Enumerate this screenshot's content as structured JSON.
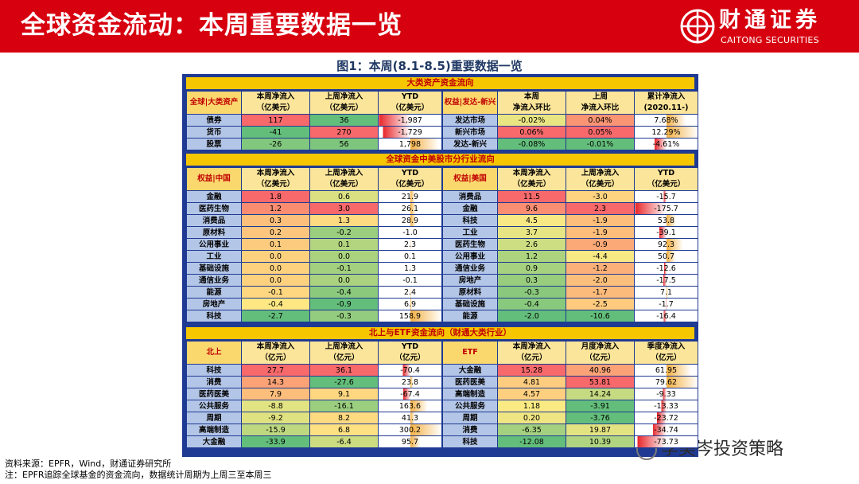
{
  "header": {
    "title": "全球资金流动：本周重要数据一览",
    "brand_cn": "财通证券",
    "brand_en": "CAITONG SECURITIES",
    "brand_color": "#d7000f"
  },
  "figure_title": "图1：本周(8.1-8.5)重要数据一览",
  "sections": [
    {
      "title": "大类资产资金流向",
      "left": {
        "headers": [
          "全球|大类资产",
          "本周净流入\n（亿美元）",
          "上周净流入\n（亿美元）",
          "YTD\n（亿美元）"
        ],
        "rows": [
          [
            "债券",
            "117",
            "36",
            "-1,987"
          ],
          [
            "货币",
            "-41",
            "270",
            "-1,729"
          ],
          [
            "股票",
            "-26",
            "56",
            "1,798"
          ]
        ]
      },
      "right": {
        "headers": [
          "权益|发达-新兴",
          "本周\n净流入环比",
          "上周\n净流入环比",
          "累计净流入\n(2020.11-)"
        ],
        "rows": [
          [
            "发达市场",
            "-0.02%",
            "0.04%",
            "7.68%"
          ],
          [
            "新兴市场",
            "0.06%",
            "0.05%",
            "12.29%"
          ],
          [
            "发达-新兴",
            "-0.08%",
            "-0.01%",
            "-4.61%"
          ]
        ]
      }
    },
    {
      "title": "全球资金中美股市分行业流向",
      "left": {
        "headers": [
          "权益|中国",
          "本周净流入\n（亿美元）",
          "上周净流入\n（亿美元）",
          "YTD\n（亿美元）"
        ],
        "rows": [
          [
            "金融",
            "1.8",
            "0.6",
            "21.9"
          ],
          [
            "医药生物",
            "1.2",
            "3.0",
            "26.1"
          ],
          [
            "消费品",
            "0.3",
            "1.3",
            "28.9"
          ],
          [
            "原材料",
            "0.2",
            "-0.2",
            "-1.0"
          ],
          [
            "公用事业",
            "0.1",
            "0.1",
            "2.3"
          ],
          [
            "工业",
            "0.0",
            "0.0",
            "0.1"
          ],
          [
            "基础设施",
            "0.0",
            "-0.1",
            "1.3"
          ],
          [
            "通信业务",
            "0.0",
            "0.0",
            "-0.1"
          ],
          [
            "能源",
            "-0.1",
            "-0.4",
            "2.4"
          ],
          [
            "房地产",
            "-0.4",
            "-0.9",
            "6.9"
          ],
          [
            "科技",
            "-2.7",
            "-0.3",
            "158.9"
          ]
        ]
      },
      "right": {
        "headers": [
          "权益|美国",
          "本周净流入\n（亿美元）",
          "上周净流入\n（亿美元）",
          "YTD\n（亿美元）"
        ],
        "rows": [
          [
            "消费品",
            "11.5",
            "-3.0",
            "-15.7"
          ],
          [
            "金融",
            "9.6",
            "2.3",
            "-175.7"
          ],
          [
            "科技",
            "4.5",
            "-1.9",
            "53.8"
          ],
          [
            "工业",
            "3.7",
            "-1.9",
            "-39.1"
          ],
          [
            "医药生物",
            "2.6",
            "-0.9",
            "92.3"
          ],
          [
            "公用事业",
            "1.2",
            "-4.4",
            "50.7"
          ],
          [
            "通信业务",
            "0.9",
            "-1.2",
            "-12.6"
          ],
          [
            "房地产",
            "0.3",
            "-2.0",
            "-17.5"
          ],
          [
            "原材料",
            "-0.3",
            "-1.7",
            "7.1"
          ],
          [
            "基础设施",
            "-0.4",
            "-2.5",
            "-1.7"
          ],
          [
            "能源",
            "-2.0",
            "-10.6",
            "-16.4"
          ]
        ]
      }
    },
    {
      "title": "北上与ETF资金流向（财通大类行业）",
      "left": {
        "headers": [
          "北上",
          "本周净流入\n（亿元）",
          "上周净流入\n（亿元）",
          "YTD\n（亿元）"
        ],
        "rows": [
          [
            "科技",
            "27.7",
            "36.1",
            "-70.4"
          ],
          [
            "消费",
            "14.3",
            "-27.6",
            "23.8"
          ],
          [
            "医药医美",
            "7.9",
            "9.1",
            "-67.4"
          ],
          [
            "公共服务",
            "-8.8",
            "-16.1",
            "163.6"
          ],
          [
            "周期",
            "-9.2",
            "8.2",
            "41.3"
          ],
          [
            "高端制造",
            "-15.9",
            "6.8",
            "300.2"
          ],
          [
            "大金融",
            "-33.9",
            "-6.4",
            "95.7"
          ]
        ]
      },
      "right": {
        "headers": [
          "ETF",
          "本周净流入\n（亿元）",
          "月度净流入\n（亿元）",
          "季度净流入\n（亿元）"
        ],
        "rows": [
          [
            "大金融",
            "15.28",
            "40.96",
            "61.95"
          ],
          [
            "医药医美",
            "4.81",
            "53.81",
            "79.62"
          ],
          [
            "高端制造",
            "4.57",
            "14.24",
            "-9.33"
          ],
          [
            "公共服务",
            "1.18",
            "-3.91",
            "-13.33"
          ],
          [
            "周期",
            "0.20",
            "-3.76",
            "-23.72"
          ],
          [
            "消费",
            "-6.35",
            "19.87",
            "-34.74"
          ],
          [
            "科技",
            "-12.08",
            "10.39",
            "-73.73"
          ]
        ]
      }
    }
  ],
  "source": [
    "资料来源：EPFR，Wind，财通证券研究所",
    "注：EPFR追踪全球基金的资金流向，数据统计周期为上周三至本周三"
  ],
  "watermark": "李美岑投资策略",
  "colors": {
    "positive": "#f8696b",
    "negative": "#63be7b",
    "neutral": "#ffeb84",
    "bar_pos": "#f4b042",
    "bar_neg": "#e8262a",
    "frame": "#1f3a93",
    "section_bar": "#f6c600"
  }
}
